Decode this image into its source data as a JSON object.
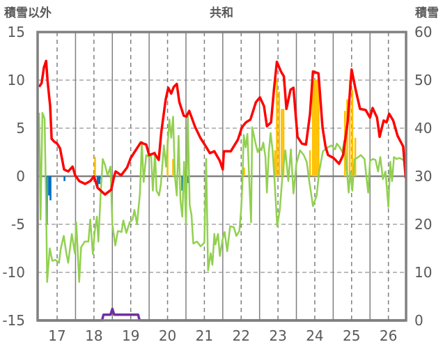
{
  "chart_data": {
    "type": "line",
    "title": "共和",
    "ylabel_left": "積雪以外",
    "ylabel_right": "積雪",
    "xlim": [
      16.47,
      26.48
    ],
    "ylim_left": [
      -15,
      15
    ],
    "ylim_right": [
      0,
      60
    ],
    "x_ticks": [
      17,
      18,
      19,
      20,
      21,
      22,
      23,
      24,
      25,
      26
    ],
    "x_tick_labels": [
      "17",
      "18",
      "19",
      "20",
      "21",
      "22",
      "23",
      "24",
      "25",
      "26"
    ],
    "y_left_ticks": [
      15,
      10,
      5,
      0,
      -5,
      -10,
      -15
    ],
    "y_left_tick_labels": [
      "15",
      "10",
      "5",
      "0",
      "-5",
      "-10",
      "-15"
    ],
    "y_right_ticks": [
      60,
      50,
      40,
      30,
      20,
      10,
      0
    ],
    "y_right_tick_labels": [
      "60",
      "50",
      "40",
      "30",
      "20",
      "10",
      "0"
    ],
    "grid": true,
    "colors": {
      "red": "#ff0000",
      "green": "#92d050",
      "orange": "#ffc000",
      "blue": "#0070c0",
      "purple": "#7030a0",
      "frame": "#808080"
    },
    "series": [
      {
        "name": "red",
        "axis": "left",
        "kind": "line",
        "color": "#ff0000",
        "points": [
          [
            16.51,
            9.3
          ],
          [
            16.58,
            9.7
          ],
          [
            16.64,
            11.3
          ],
          [
            16.7,
            12.0
          ],
          [
            16.74,
            9.9
          ],
          [
            16.81,
            7.3
          ],
          [
            16.85,
            3.9
          ],
          [
            16.92,
            3.6
          ],
          [
            17.0,
            3.4
          ],
          [
            17.08,
            2.9
          ],
          [
            17.19,
            0.7
          ],
          [
            17.3,
            0.5
          ],
          [
            17.42,
            1.0
          ],
          [
            17.49,
            0.1
          ],
          [
            17.6,
            -0.5
          ],
          [
            17.76,
            -0.8
          ],
          [
            17.9,
            -0.5
          ],
          [
            18.0,
            0
          ],
          [
            18.1,
            -1.2
          ],
          [
            18.3,
            -1.9
          ],
          [
            18.47,
            -1.4
          ],
          [
            18.55,
            0
          ],
          [
            18.59,
            0.5
          ],
          [
            18.74,
            0.1
          ],
          [
            18.9,
            0.9
          ],
          [
            19.0,
            1.9
          ],
          [
            19.1,
            2.5
          ],
          [
            19.27,
            3.5
          ],
          [
            19.42,
            3.3
          ],
          [
            19.5,
            2.2
          ],
          [
            19.64,
            2.4
          ],
          [
            19.76,
            1.7
          ],
          [
            19.83,
            4.6
          ],
          [
            19.95,
            8.0
          ],
          [
            20.02,
            9.2
          ],
          [
            20.1,
            8.6
          ],
          [
            20.17,
            9.3
          ],
          [
            20.25,
            9.6
          ],
          [
            20.32,
            7.7
          ],
          [
            20.44,
            6.3
          ],
          [
            20.51,
            6.2
          ],
          [
            20.59,
            6.8
          ],
          [
            20.74,
            5.2
          ],
          [
            20.89,
            4.0
          ],
          [
            21.04,
            3.1
          ],
          [
            21.15,
            2.4
          ],
          [
            21.27,
            2.6
          ],
          [
            21.42,
            1.6
          ],
          [
            21.5,
            0.7
          ],
          [
            21.53,
            2.6
          ],
          [
            21.72,
            2.6
          ],
          [
            21.91,
            3.8
          ],
          [
            22.02,
            5.1
          ],
          [
            22.13,
            5.6
          ],
          [
            22.25,
            5.9
          ],
          [
            22.4,
            7.7
          ],
          [
            22.51,
            8.2
          ],
          [
            22.62,
            7.3
          ],
          [
            22.7,
            5.2
          ],
          [
            22.81,
            5.6
          ],
          [
            22.89,
            9.0
          ],
          [
            22.97,
            11.9
          ],
          [
            23.08,
            10.9
          ],
          [
            23.16,
            10.4
          ],
          [
            23.23,
            7.0
          ],
          [
            23.34,
            9.0
          ],
          [
            23.42,
            9.2
          ],
          [
            23.53,
            4.1
          ],
          [
            23.65,
            3.4
          ],
          [
            23.76,
            3.3
          ],
          [
            23.87,
            6.5
          ],
          [
            23.95,
            10.9
          ],
          [
            24.1,
            10.7
          ],
          [
            24.21,
            5.1
          ],
          [
            24.29,
            3.1
          ],
          [
            24.36,
            2.2
          ],
          [
            24.51,
            1.9
          ],
          [
            24.66,
            1.3
          ],
          [
            24.77,
            2.2
          ],
          [
            24.89,
            5.6
          ],
          [
            25.0,
            11.1
          ],
          [
            25.11,
            9.0
          ],
          [
            25.23,
            7.0
          ],
          [
            25.38,
            6.9
          ],
          [
            25.5,
            6.1
          ],
          [
            25.57,
            7.1
          ],
          [
            25.69,
            6.1
          ],
          [
            25.76,
            4.1
          ],
          [
            25.87,
            5.8
          ],
          [
            25.95,
            5.6
          ],
          [
            26.02,
            6.5
          ],
          [
            26.13,
            5.8
          ],
          [
            26.25,
            4.2
          ],
          [
            26.4,
            3.1
          ],
          [
            26.47,
            -0.2
          ]
        ]
      },
      {
        "name": "green",
        "axis": "left",
        "kind": "line",
        "color": "#92d050",
        "points": [
          [
            16.51,
            6.6
          ],
          [
            16.55,
            -4.5
          ],
          [
            16.6,
            6.6
          ],
          [
            16.66,
            6.0
          ],
          [
            16.7,
            -3
          ],
          [
            16.73,
            -11
          ],
          [
            16.8,
            -7.5
          ],
          [
            16.87,
            -8.8
          ],
          [
            16.95,
            -8.7
          ],
          [
            17.05,
            -9.0
          ],
          [
            17.1,
            -7.5
          ],
          [
            17.18,
            -6.2
          ],
          [
            17.25,
            -8
          ],
          [
            17.3,
            -9
          ],
          [
            17.4,
            -6
          ],
          [
            17.48,
            -8
          ],
          [
            17.52,
            -4.8
          ],
          [
            17.6,
            -11
          ],
          [
            17.65,
            -7.4
          ],
          [
            17.75,
            -6.8
          ],
          [
            17.85,
            -6.8
          ],
          [
            17.9,
            -4.5
          ],
          [
            17.97,
            -8.1
          ],
          [
            18.02,
            -5.8
          ],
          [
            18.08,
            -4.2
          ],
          [
            18.12,
            -6.8
          ],
          [
            18.18,
            -2
          ],
          [
            18.24,
            1.8
          ],
          [
            18.3,
            1.2
          ],
          [
            18.37,
            0.1
          ],
          [
            18.45,
            1
          ],
          [
            18.5,
            -5
          ],
          [
            18.58,
            -7.2
          ],
          [
            18.65,
            -5.7
          ],
          [
            18.75,
            -5.8
          ],
          [
            18.8,
            -4.6
          ],
          [
            18.88,
            -5.9
          ],
          [
            18.97,
            -4.8
          ],
          [
            19.05,
            -4.5
          ],
          [
            19.1,
            -3.5
          ],
          [
            19.17,
            -5
          ],
          [
            19.25,
            -1.8
          ],
          [
            19.3,
            3.6
          ],
          [
            19.35,
            -0.6
          ],
          [
            19.42,
            2.2
          ],
          [
            19.5,
            2.0
          ],
          [
            19.55,
            2.3
          ],
          [
            19.6,
            -1.5
          ],
          [
            19.66,
            2.5
          ],
          [
            19.7,
            -1.5
          ],
          [
            19.77,
            -2
          ],
          [
            19.82,
            -0.8
          ],
          [
            19.9,
            3.2
          ],
          [
            19.96,
            1
          ],
          [
            20.05,
            5.9
          ],
          [
            20.1,
            4
          ],
          [
            20.15,
            6.2
          ],
          [
            20.2,
            0
          ],
          [
            20.25,
            -2
          ],
          [
            20.3,
            4.2
          ],
          [
            20.35,
            -2.5
          ],
          [
            20.4,
            -4.2
          ],
          [
            20.45,
            1.5
          ],
          [
            20.5,
            -5
          ],
          [
            20.55,
            6.3
          ],
          [
            20.6,
            -3
          ],
          [
            20.65,
            -4
          ],
          [
            20.7,
            -7
          ],
          [
            20.8,
            -6.8
          ],
          [
            20.9,
            -7.3
          ],
          [
            21.0,
            -6.9
          ],
          [
            21.05,
            1.8
          ],
          [
            21.1,
            -9.8
          ],
          [
            21.17,
            -8
          ],
          [
            21.22,
            -9.2
          ],
          [
            21.27,
            -6
          ],
          [
            21.3,
            -7.1
          ],
          [
            21.37,
            -6
          ],
          [
            21.42,
            -8.3
          ],
          [
            21.5,
            -6.5
          ],
          [
            21.55,
            -5.8
          ],
          [
            21.62,
            -7.8
          ],
          [
            21.7,
            -5.2
          ],
          [
            21.8,
            -5.3
          ],
          [
            21.87,
            -6.2
          ],
          [
            21.95,
            -5.7
          ],
          [
            22.0,
            -3.5
          ],
          [
            22.03,
            -1
          ],
          [
            22.07,
            4.3
          ],
          [
            22.12,
            3
          ],
          [
            22.17,
            4.4
          ],
          [
            22.22,
            -0.5
          ],
          [
            22.27,
            -4.8
          ],
          [
            22.3,
            5.1
          ],
          [
            22.38,
            3.6
          ],
          [
            22.45,
            2.5
          ],
          [
            22.5,
            3
          ],
          [
            22.55,
            2.7
          ],
          [
            22.6,
            3.5
          ],
          [
            22.66,
            2
          ],
          [
            22.7,
            -1.7
          ],
          [
            22.75,
            2.5
          ],
          [
            22.8,
            4.5
          ],
          [
            22.85,
            2.8
          ],
          [
            22.9,
            0
          ],
          [
            22.98,
            -5.2
          ],
          [
            23.05,
            -3.5
          ],
          [
            23.12,
            0
          ],
          [
            23.2,
            2.7
          ],
          [
            23.28,
            -0.5
          ],
          [
            23.35,
            2.8
          ],
          [
            23.42,
            -1.8
          ],
          [
            23.5,
            1.3
          ],
          [
            23.6,
            2.7
          ],
          [
            23.7,
            2.2
          ],
          [
            23.78,
            1.5
          ],
          [
            23.85,
            -0.5
          ],
          [
            23.95,
            -3.1
          ],
          [
            24.05,
            -2
          ],
          [
            24.12,
            0.5
          ],
          [
            24.22,
            2.6
          ],
          [
            24.35,
            3
          ],
          [
            24.45,
            3.2
          ],
          [
            24.55,
            2.8
          ],
          [
            24.6,
            3.4
          ],
          [
            24.68,
            3
          ],
          [
            24.75,
            2.5
          ],
          [
            24.8,
            3.7
          ],
          [
            24.85,
            1.5
          ],
          [
            24.92,
            -1.7
          ],
          [
            24.96,
            0.5
          ],
          [
            25.02,
            -1.5
          ],
          [
            25.08,
            1.8
          ],
          [
            25.15,
            1.9
          ],
          [
            25.25,
            2.2
          ],
          [
            25.35,
            1.8
          ],
          [
            25.4,
            0
          ],
          [
            25.45,
            -1.7
          ],
          [
            25.5,
            1.6
          ],
          [
            25.58,
            1.8
          ],
          [
            25.65,
            1.7
          ],
          [
            25.72,
            0.5
          ],
          [
            25.78,
            2
          ],
          [
            25.85,
            -0.3
          ],
          [
            25.92,
            0.5
          ],
          [
            26.0,
            -3.2
          ],
          [
            26.05,
            1.5
          ],
          [
            26.1,
            -0.5
          ],
          [
            26.15,
            2
          ],
          [
            26.22,
            1.8
          ],
          [
            26.3,
            1.9
          ],
          [
            26.4,
            1.7
          ],
          [
            26.47,
            1.6
          ]
        ]
      },
      {
        "name": "orange",
        "axis": "left",
        "kind": "bar",
        "color": "#ffc000",
        "points": [
          [
            18.03,
            2
          ],
          [
            20.0,
            3.8
          ],
          [
            20.15,
            1.8
          ],
          [
            22.08,
            0.9
          ],
          [
            22.92,
            2.7
          ],
          [
            22.97,
            10
          ],
          [
            23.03,
            8.8
          ],
          [
            23.1,
            7
          ],
          [
            23.15,
            7
          ],
          [
            23.87,
            2.7
          ],
          [
            23.95,
            10
          ],
          [
            24.0,
            10
          ],
          [
            24.05,
            10
          ],
          [
            24.1,
            10
          ],
          [
            24.82,
            6.8
          ],
          [
            24.88,
            8
          ],
          [
            24.95,
            10
          ],
          [
            25.02,
            9
          ],
          [
            25.1,
            4
          ]
        ]
      },
      {
        "name": "blue",
        "axis": "left",
        "kind": "bar",
        "color": "#0070c0",
        "points": [
          [
            16.72,
            -5
          ],
          [
            16.78,
            -2
          ],
          [
            16.82,
            -2.5
          ],
          [
            17.2,
            -0.5
          ],
          [
            18.1,
            -1.3
          ],
          [
            18.15,
            -0.8
          ],
          [
            18.2,
            -0.3
          ],
          [
            20.4,
            -1.5
          ],
          [
            20.55,
            -0.7
          ]
        ]
      },
      {
        "name": "purple",
        "axis": "right",
        "kind": "line",
        "color": "#7030a0",
        "points": [
          [
            16.47,
            0
          ],
          [
            18.22,
            0
          ],
          [
            18.26,
            1.2
          ],
          [
            18.45,
            1.2
          ],
          [
            18.5,
            2.4
          ],
          [
            18.55,
            1.2
          ],
          [
            19.2,
            1.2
          ],
          [
            19.24,
            0
          ],
          [
            26.48,
            0
          ]
        ]
      }
    ]
  }
}
